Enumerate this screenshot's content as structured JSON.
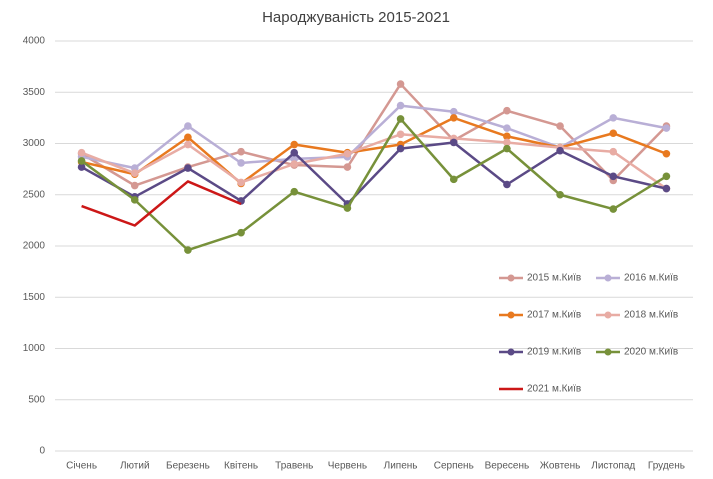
{
  "chart_data": {
    "type": "line",
    "title": "Народжуваність 2015-2021",
    "categories": [
      "Січень",
      "Лютий",
      "Березень",
      "Квітень",
      "Травень",
      "Червень",
      "Липень",
      "Серпень",
      "Вересень",
      "Жовтень",
      "Листопад",
      "Грудень"
    ],
    "series": [
      {
        "name": "2015 м.Київ",
        "color": "#d49892",
        "markers": true,
        "values": [
          2900,
          2590,
          2770,
          2920,
          2790,
          2770,
          3580,
          3030,
          3320,
          3170,
          2640,
          3170
        ]
      },
      {
        "name": "2016 м.Київ",
        "color": "#b9afd6",
        "markers": true,
        "values": [
          2870,
          2760,
          3170,
          2810,
          2850,
          2870,
          3370,
          3310,
          3150,
          2960,
          3250,
          3150
        ]
      },
      {
        "name": "2017 м.Київ",
        "color": "#e8791f",
        "markers": true,
        "values": [
          2820,
          2700,
          3060,
          2610,
          2990,
          2910,
          2990,
          3250,
          3070,
          2960,
          3100,
          2900
        ]
      },
      {
        "name": "2018 м.Київ",
        "color": "#e8aca4",
        "markers": true,
        "values": [
          2910,
          2710,
          2990,
          2620,
          2800,
          2900,
          3090,
          3050,
          3010,
          2960,
          2920,
          2560
        ]
      },
      {
        "name": "2019 м.Київ",
        "color": "#5b4a86",
        "markers": true,
        "values": [
          2770,
          2480,
          2760,
          2440,
          2910,
          2410,
          2950,
          3010,
          2600,
          2930,
          2680,
          2560
        ]
      },
      {
        "name": "2020 м.Київ",
        "color": "#77913a",
        "markers": true,
        "values": [
          2830,
          2450,
          1960,
          2130,
          2530,
          2370,
          3240,
          2650,
          2950,
          2500,
          2360,
          2680
        ]
      },
      {
        "name": "2021 м.Київ",
        "color": "#cc1717",
        "markers": false,
        "values": [
          2390,
          2200,
          2630,
          2410,
          null,
          null,
          null,
          null,
          null,
          null,
          null,
          null
        ]
      }
    ],
    "ylim": [
      0,
      4000
    ],
    "yticks": [
      0,
      500,
      1000,
      1500,
      2000,
      2500,
      3000,
      3500,
      4000
    ],
    "grid": true,
    "legend": "lower right"
  }
}
